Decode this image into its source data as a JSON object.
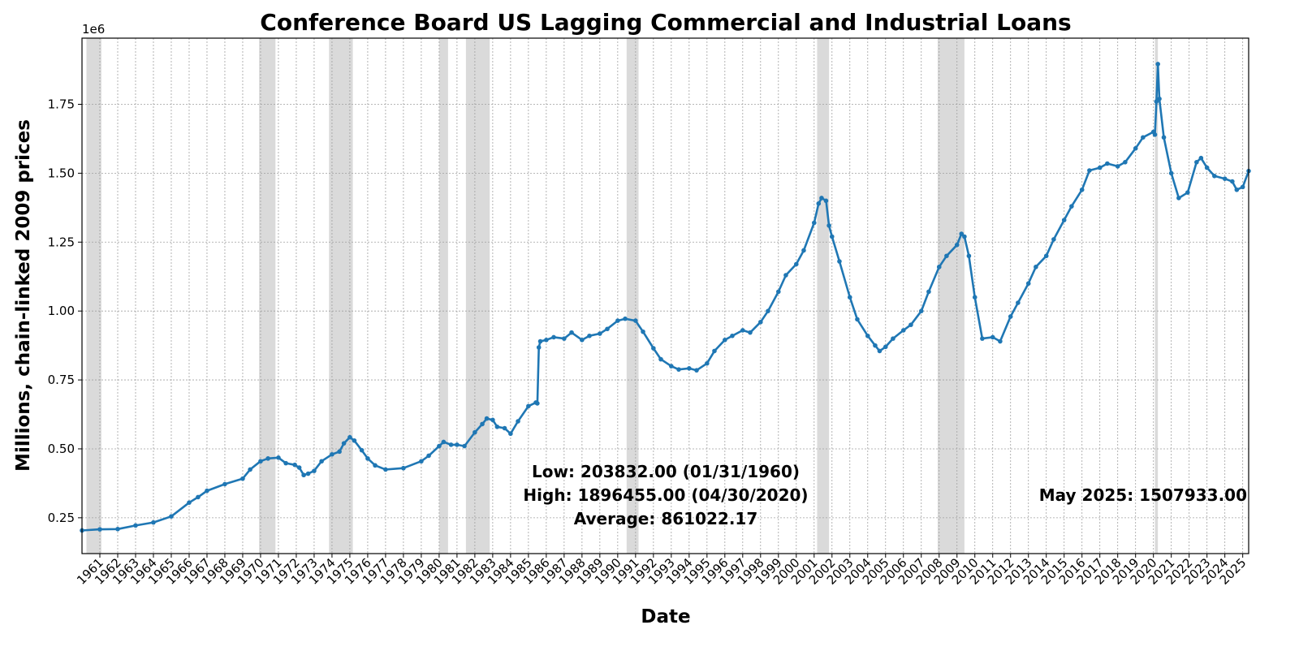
{
  "chart_data": {
    "type": "line",
    "title": "Conference Board US Lagging Commercial and Industrial Loans",
    "xlabel": "Date",
    "ylabel": "Millions, chain-linked 2009 prices",
    "y_offset_text": "1e6",
    "x_range": [
      "1960-01",
      "2025-05"
    ],
    "ylim": [
      0.12,
      1.99
    ],
    "y_ticks": [
      0.25,
      0.5,
      0.75,
      1.0,
      1.25,
      1.5,
      1.75
    ],
    "y_tick_labels": [
      "0.25",
      "0.50",
      "0.75",
      "1.00",
      "1.25",
      "1.50",
      "1.75"
    ],
    "x_tick_labels": [
      "1961",
      "1962",
      "1963",
      "1964",
      "1965",
      "1966",
      "1967",
      "1968",
      "1969",
      "1970",
      "1971",
      "1972",
      "1973",
      "1974",
      "1975",
      "1976",
      "1977",
      "1978",
      "1979",
      "1980",
      "1981",
      "1982",
      "1983",
      "1984",
      "1985",
      "1986",
      "1987",
      "1988",
      "1989",
      "1990",
      "1991",
      "1992",
      "1993",
      "1994",
      "1995",
      "1996",
      "1997",
      "1998",
      "1999",
      "2000",
      "2001",
      "2002",
      "2003",
      "2004",
      "2005",
      "2006",
      "2007",
      "2008",
      "2009",
      "2010",
      "2011",
      "2012",
      "2013",
      "2014",
      "2015",
      "2016",
      "2017",
      "2018",
      "2019",
      "2020",
      "2021",
      "2022",
      "2023",
      "2024",
      "2025"
    ],
    "grid": true,
    "recessions": [
      [
        "1960-04",
        "1961-02"
      ],
      [
        "1969-12",
        "1970-11"
      ],
      [
        "1973-11",
        "1975-03"
      ],
      [
        "1980-01",
        "1980-07"
      ],
      [
        "1981-07",
        "1982-11"
      ],
      [
        "1990-07",
        "1991-03"
      ],
      [
        "2001-03",
        "2001-11"
      ],
      [
        "2007-12",
        "2009-06"
      ],
      [
        "2020-02",
        "2020-04"
      ]
    ],
    "series": [
      {
        "color": "#1f77b4",
        "points": [
          [
            "1960-01",
            0.204
          ],
          [
            "1961-01",
            0.208
          ],
          [
            "1962-01",
            0.209
          ],
          [
            "1963-01",
            0.222
          ],
          [
            "1964-01",
            0.233
          ],
          [
            "1965-01",
            0.255
          ],
          [
            "1966-01",
            0.305
          ],
          [
            "1966-07",
            0.325
          ],
          [
            "1967-01",
            0.348
          ],
          [
            "1968-01",
            0.372
          ],
          [
            "1969-01",
            0.392
          ],
          [
            "1969-06",
            0.425
          ],
          [
            "1970-01",
            0.455
          ],
          [
            "1970-06",
            0.465
          ],
          [
            "1971-01",
            0.468
          ],
          [
            "1971-06",
            0.448
          ],
          [
            "1971-12",
            0.442
          ],
          [
            "1972-03",
            0.432
          ],
          [
            "1972-06",
            0.405
          ],
          [
            "1972-09",
            0.41
          ],
          [
            "1973-01",
            0.42
          ],
          [
            "1973-06",
            0.455
          ],
          [
            "1974-01",
            0.48
          ],
          [
            "1974-06",
            0.49
          ],
          [
            "1974-09",
            0.52
          ],
          [
            "1975-01",
            0.542
          ],
          [
            "1975-04",
            0.53
          ],
          [
            "1975-09",
            0.495
          ],
          [
            "1976-01",
            0.465
          ],
          [
            "1976-06",
            0.44
          ],
          [
            "1977-01",
            0.425
          ],
          [
            "1978-01",
            0.43
          ],
          [
            "1979-01",
            0.455
          ],
          [
            "1979-06",
            0.475
          ],
          [
            "1980-01",
            0.51
          ],
          [
            "1980-04",
            0.525
          ],
          [
            "1980-09",
            0.515
          ],
          [
            "1981-01",
            0.515
          ],
          [
            "1981-06",
            0.51
          ],
          [
            "1982-01",
            0.56
          ],
          [
            "1982-06",
            0.59
          ],
          [
            "1982-09",
            0.61
          ],
          [
            "1983-01",
            0.605
          ],
          [
            "1983-04",
            0.58
          ],
          [
            "1983-09",
            0.575
          ],
          [
            "1984-01",
            0.555
          ],
          [
            "1984-06",
            0.6
          ],
          [
            "1985-01",
            0.655
          ],
          [
            "1985-06",
            0.668
          ],
          [
            "1985-07",
            0.665
          ],
          [
            "1985-08",
            0.868
          ],
          [
            "1985-09",
            0.89
          ],
          [
            "1986-01",
            0.895
          ],
          [
            "1986-06",
            0.905
          ],
          [
            "1987-01",
            0.9
          ],
          [
            "1987-06",
            0.922
          ],
          [
            "1988-01",
            0.895
          ],
          [
            "1988-06",
            0.91
          ],
          [
            "1989-01",
            0.918
          ],
          [
            "1989-06",
            0.935
          ],
          [
            "1990-01",
            0.965
          ],
          [
            "1990-06",
            0.972
          ],
          [
            "1991-01",
            0.965
          ],
          [
            "1991-06",
            0.925
          ],
          [
            "1992-01",
            0.865
          ],
          [
            "1992-06",
            0.825
          ],
          [
            "1993-01",
            0.8
          ],
          [
            "1993-06",
            0.788
          ],
          [
            "1994-01",
            0.792
          ],
          [
            "1994-06",
            0.785
          ],
          [
            "1995-01",
            0.81
          ],
          [
            "1995-06",
            0.855
          ],
          [
            "1996-01",
            0.895
          ],
          [
            "1996-06",
            0.91
          ],
          [
            "1997-01",
            0.93
          ],
          [
            "1997-06",
            0.922
          ],
          [
            "1998-01",
            0.96
          ],
          [
            "1998-06",
            1.0
          ],
          [
            "1999-01",
            1.07
          ],
          [
            "1999-06",
            1.13
          ],
          [
            "2000-01",
            1.17
          ],
          [
            "2000-06",
            1.22
          ],
          [
            "2001-01",
            1.32
          ],
          [
            "2001-04",
            1.39
          ],
          [
            "2001-06",
            1.41
          ],
          [
            "2001-09",
            1.4
          ],
          [
            "2001-11",
            1.31
          ],
          [
            "2002-01",
            1.27
          ],
          [
            "2002-06",
            1.18
          ],
          [
            "2003-01",
            1.05
          ],
          [
            "2003-06",
            0.97
          ],
          [
            "2004-01",
            0.91
          ],
          [
            "2004-06",
            0.875
          ],
          [
            "2004-09",
            0.855
          ],
          [
            "2005-01",
            0.87
          ],
          [
            "2005-06",
            0.9
          ],
          [
            "2006-01",
            0.93
          ],
          [
            "2006-06",
            0.95
          ],
          [
            "2007-01",
            1.0
          ],
          [
            "2007-06",
            1.07
          ],
          [
            "2008-01",
            1.16
          ],
          [
            "2008-06",
            1.2
          ],
          [
            "2009-01",
            1.24
          ],
          [
            "2009-04",
            1.28
          ],
          [
            "2009-06",
            1.27
          ],
          [
            "2009-09",
            1.2
          ],
          [
            "2010-01",
            1.05
          ],
          [
            "2010-06",
            0.9
          ],
          [
            "2011-01",
            0.905
          ],
          [
            "2011-06",
            0.89
          ],
          [
            "2012-01",
            0.98
          ],
          [
            "2012-06",
            1.03
          ],
          [
            "2013-01",
            1.1
          ],
          [
            "2013-06",
            1.16
          ],
          [
            "2014-01",
            1.2
          ],
          [
            "2014-06",
            1.26
          ],
          [
            "2015-01",
            1.33
          ],
          [
            "2015-06",
            1.38
          ],
          [
            "2016-01",
            1.44
          ],
          [
            "2016-06",
            1.51
          ],
          [
            "2017-01",
            1.52
          ],
          [
            "2017-06",
            1.535
          ],
          [
            "2018-01",
            1.525
          ],
          [
            "2018-06",
            1.54
          ],
          [
            "2019-01",
            1.59
          ],
          [
            "2019-06",
            1.63
          ],
          [
            "2020-01",
            1.65
          ],
          [
            "2020-02",
            1.64
          ],
          [
            "2020-03",
            1.76
          ],
          [
            "2020-04",
            1.896
          ],
          [
            "2020-05",
            1.77
          ],
          [
            "2020-08",
            1.63
          ],
          [
            "2021-01",
            1.5
          ],
          [
            "2021-06",
            1.41
          ],
          [
            "2021-12",
            1.43
          ],
          [
            "2022-06",
            1.54
          ],
          [
            "2022-09",
            1.555
          ],
          [
            "2023-01",
            1.52
          ],
          [
            "2023-06",
            1.49
          ],
          [
            "2024-01",
            1.48
          ],
          [
            "2024-06",
            1.47
          ],
          [
            "2024-09",
            1.44
          ],
          [
            "2025-01",
            1.45
          ],
          [
            "2025-05",
            1.508
          ]
        ]
      }
    ],
    "annotations": [
      "Low: 203832.00 (01/31/1960)",
      "High: 1896455.00 (04/30/2020)",
      "Average: 861022.17"
    ],
    "latest_label": "May 2025: 1507933.00"
  }
}
